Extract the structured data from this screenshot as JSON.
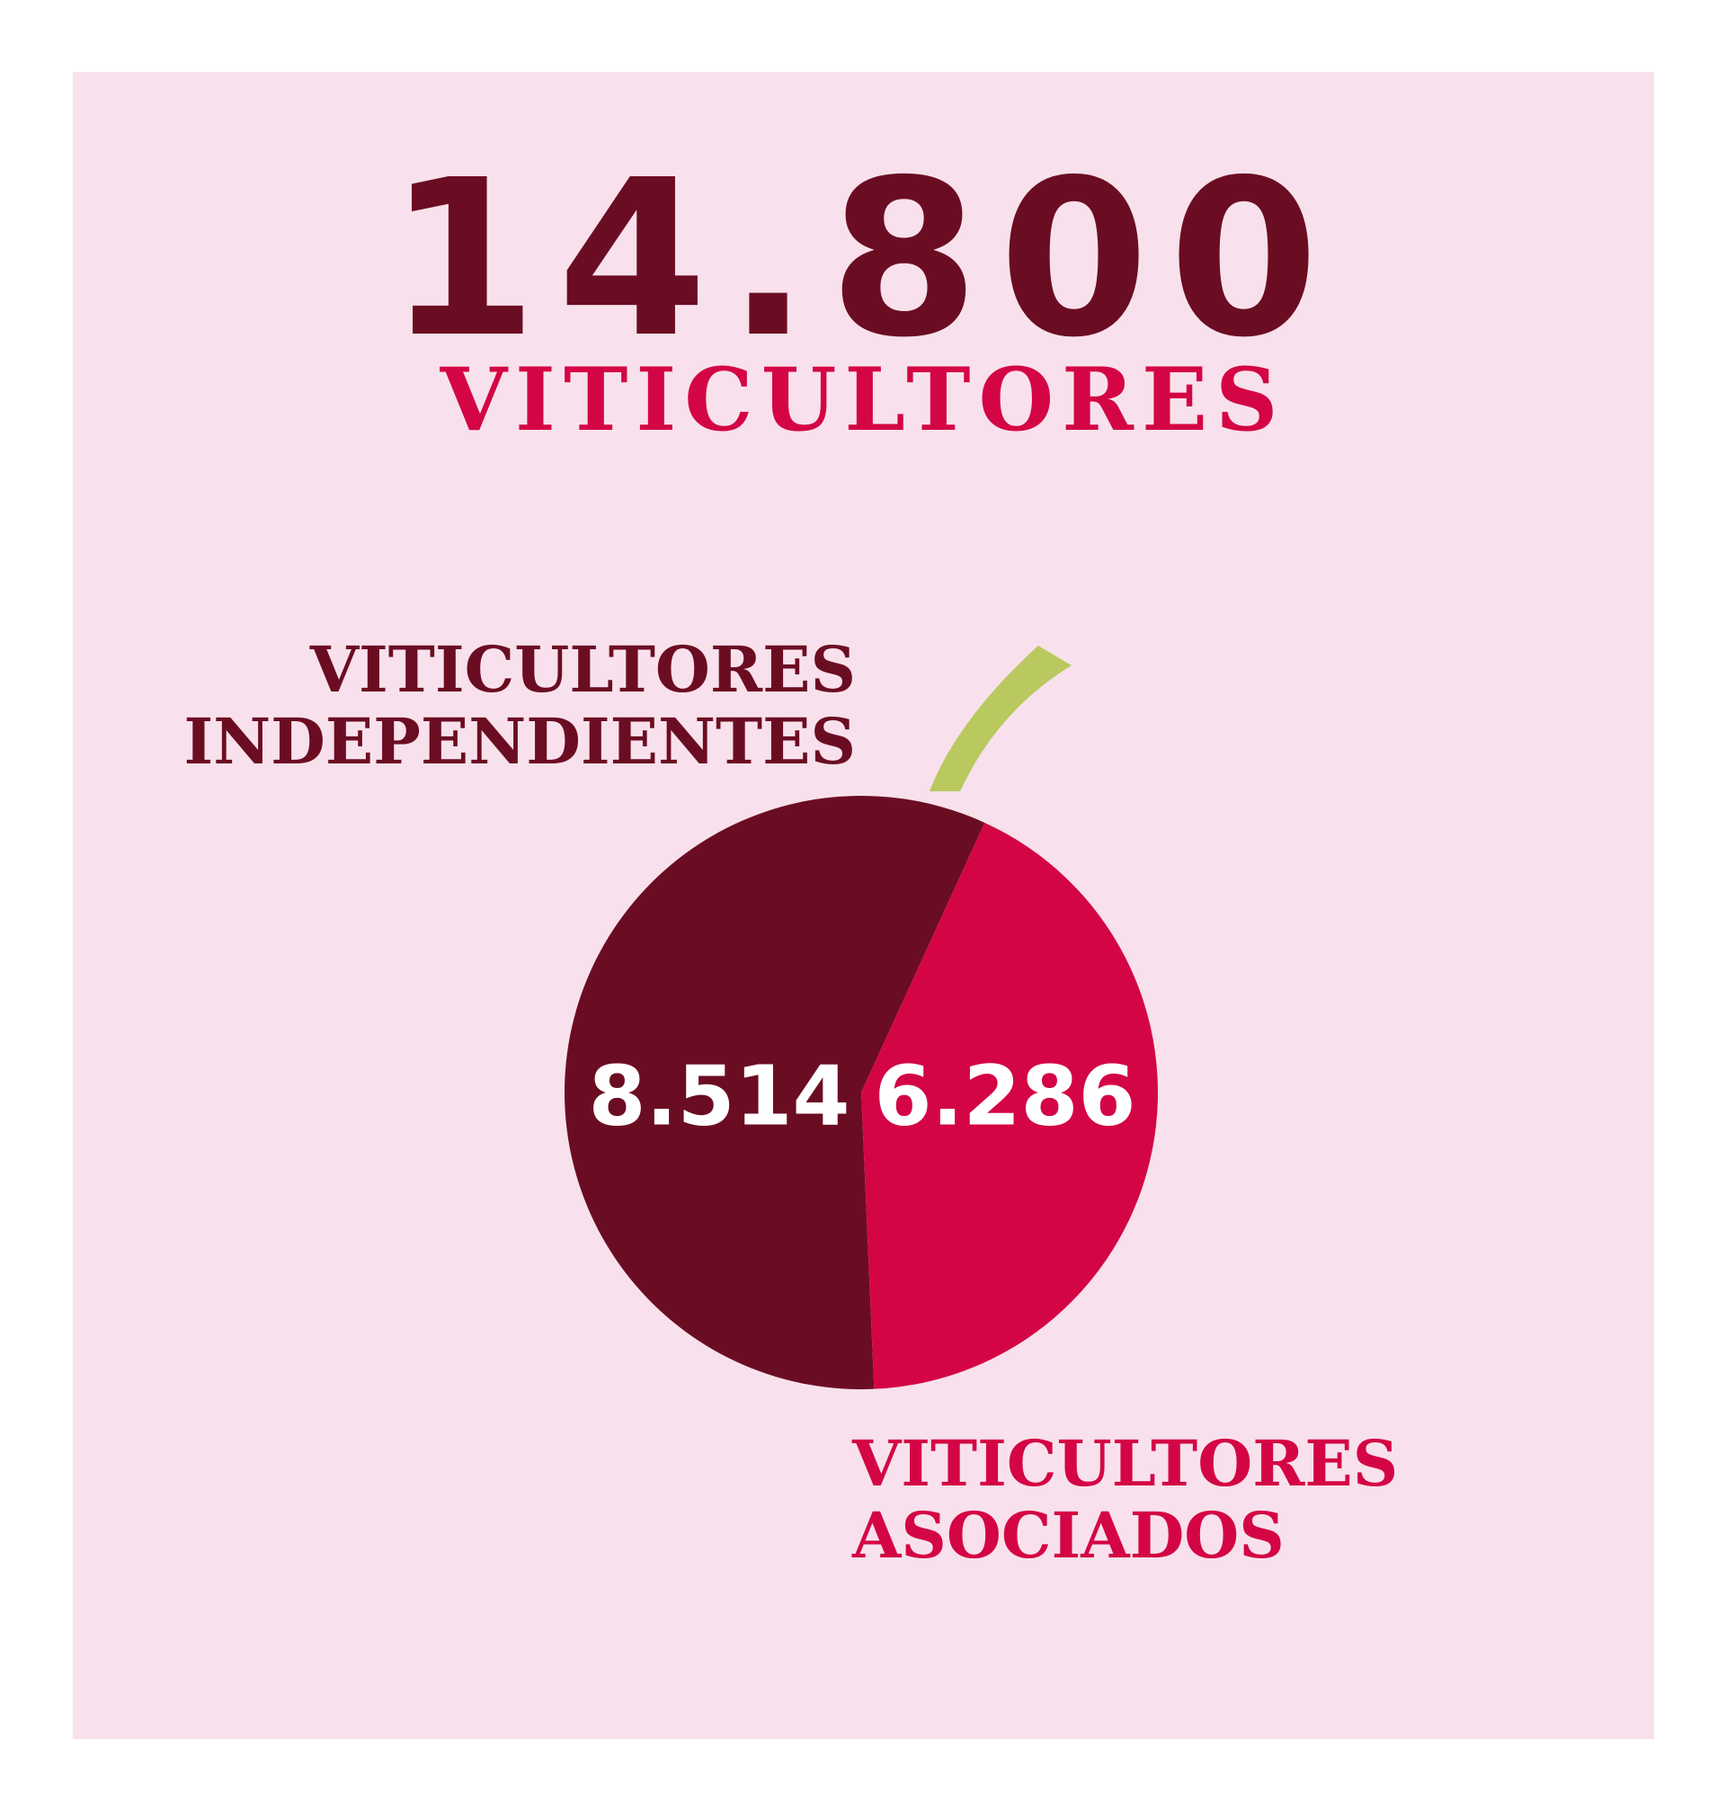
{
  "header": {
    "total": "14.800",
    "label": "VITICULTORES"
  },
  "chart_data": {
    "type": "pie",
    "categories": [
      "VITICULTORES INDEPENDIENTES",
      "VITICULTORES ASOCIADOS"
    ],
    "values": [
      8514,
      6286
    ],
    "value_labels": [
      "8.514",
      "6.286"
    ],
    "total": 14800,
    "colors": [
      "#6b0d22",
      "#d40545"
    ],
    "stem_color": "#b9c95f",
    "annotations": [
      {
        "lines": [
          "VITICULTORES",
          "INDEPENDIENTES"
        ]
      },
      {
        "lines": [
          "VITICULTORES",
          "ASOCIADOS"
        ]
      }
    ]
  },
  "background_color": "#f8e1ec"
}
